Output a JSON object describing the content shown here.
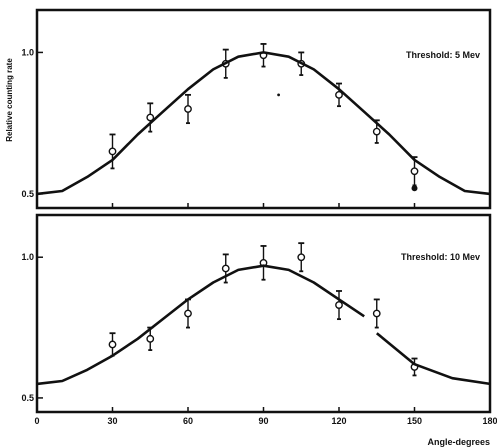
{
  "chart_data": [
    {
      "type": "scatter",
      "panel": "top",
      "annotation": "Threshold: 5 Mev",
      "ylabel": "Relative counting rate",
      "xlim": [
        0,
        180
      ],
      "ylim": [
        0.45,
        1.15
      ],
      "yticks": [
        0.5,
        1.0
      ],
      "ytick_labels": [
        "0.5",
        "1.0"
      ],
      "series": [
        {
          "type": "scatter",
          "x": [
            30,
            45,
            60,
            75,
            90,
            105,
            120,
            135,
            150
          ],
          "y": [
            0.65,
            0.77,
            0.8,
            0.96,
            0.99,
            0.96,
            0.85,
            0.72,
            0.58
          ],
          "err": [
            0.06,
            0.05,
            0.05,
            0.05,
            0.04,
            0.04,
            0.04,
            0.04,
            0.05
          ]
        },
        {
          "type": "line",
          "x": [
            0,
            10,
            20,
            30,
            40,
            50,
            60,
            70,
            80,
            90,
            100,
            110,
            120,
            130,
            140,
            150,
            160,
            170,
            180
          ],
          "y": [
            0.5,
            0.51,
            0.56,
            0.62,
            0.71,
            0.79,
            0.87,
            0.94,
            0.985,
            1.0,
            0.985,
            0.94,
            0.87,
            0.79,
            0.71,
            0.62,
            0.56,
            0.51,
            0.5
          ]
        }
      ],
      "extra_points": [
        {
          "x": 150,
          "y": 0.52
        },
        {
          "x": 96,
          "y": 0.85
        }
      ]
    },
    {
      "type": "scatter",
      "panel": "bottom",
      "annotation": "Threshold: 10 Mev",
      "xlabel": "Angle-degrees",
      "xlim": [
        0,
        180
      ],
      "ylim": [
        0.45,
        1.15
      ],
      "xticks": [
        0,
        30,
        60,
        90,
        120,
        150,
        180
      ],
      "xtick_labels": [
        "0",
        "30",
        "60",
        "90",
        "120",
        "150",
        "180"
      ],
      "yticks": [
        0.5,
        1.0
      ],
      "ytick_labels": [
        "0.5",
        "1.0"
      ],
      "series": [
        {
          "type": "scatter",
          "x": [
            30,
            45,
            60,
            75,
            90,
            105,
            120,
            135,
            150
          ],
          "y": [
            0.69,
            0.71,
            0.8,
            0.96,
            0.98,
            1.0,
            0.83,
            0.8,
            0.61
          ],
          "err": [
            0.04,
            0.04,
            0.05,
            0.05,
            0.06,
            0.05,
            0.05,
            0.05,
            0.03
          ]
        },
        {
          "type": "line",
          "x": [
            0,
            10,
            20,
            30,
            40,
            50,
            60,
            70,
            80,
            90,
            100,
            110,
            120,
            130
          ],
          "y": [
            0.55,
            0.56,
            0.6,
            0.65,
            0.71,
            0.78,
            0.85,
            0.91,
            0.955,
            0.97,
            0.955,
            0.91,
            0.85,
            0.79
          ]
        },
        {
          "type": "line",
          "x": [
            135,
            150,
            165,
            180
          ],
          "y": [
            0.73,
            0.62,
            0.57,
            0.55
          ]
        }
      ]
    }
  ]
}
